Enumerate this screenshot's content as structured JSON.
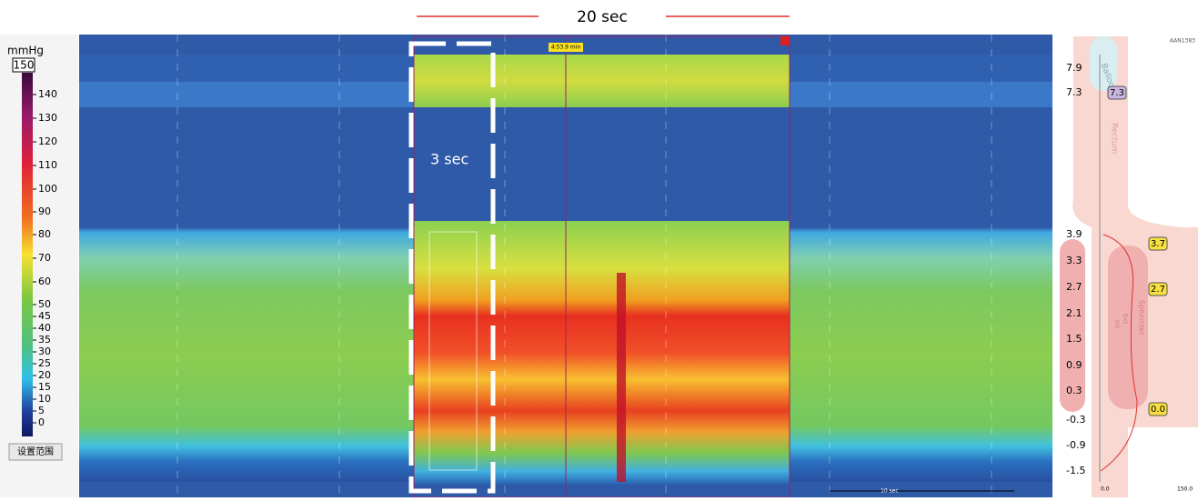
{
  "header": {
    "duration_label": "20 sec"
  },
  "colorbar": {
    "unit": "mmHg",
    "max": "150",
    "ticks": [
      "140",
      "130",
      "120",
      "110",
      "100",
      "90",
      "80",
      "70",
      "60",
      "50",
      "45",
      "40",
      "35",
      "30",
      "25",
      "20",
      "15",
      "10",
      "5",
      "0"
    ],
    "button": "设置范围"
  },
  "heatmap": {
    "window_label": "3 sec",
    "time_label": "4:53.9 min",
    "scale_label": "10 sec"
  },
  "anatomy": {
    "id": "AAN1383",
    "depths": [
      "7.9",
      "7.3",
      "3.9",
      "3.3",
      "2.7",
      "2.1",
      "1.5",
      "0.9",
      "0.3",
      "-0.3",
      "-0.9",
      "-1.5"
    ],
    "markers": [
      "7.3",
      "3.7",
      "2.7",
      "0.0"
    ],
    "balloon": "Balloon",
    "rectum": "Rectum",
    "sphincter": "Sphincter",
    "ext": "Ext",
    "int": "Int",
    "axis_start": "0.0",
    "axis_end": "150.0"
  }
}
